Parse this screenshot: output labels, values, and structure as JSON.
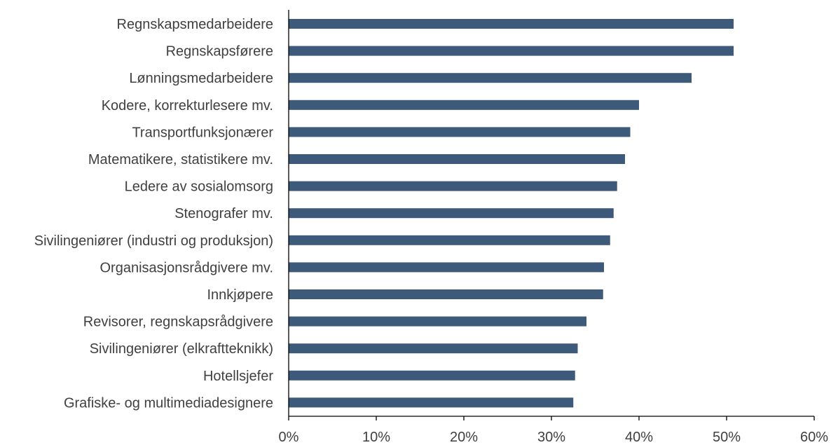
{
  "chart_data": {
    "type": "bar",
    "orientation": "horizontal",
    "title": "",
    "xlabel": "",
    "ylabel": "",
    "categories": [
      "Regnskapsmedarbeidere",
      "Regnskapsførere",
      "Lønningsmedarbeidere",
      "Kodere, korrekturlesere mv.",
      "Transportfunksjonærer",
      "Matematikere, statistikere mv.",
      "Ledere av sosialomsorg",
      "Stenografer mv.",
      "Sivilingeniører (industri og produksjon)",
      "Organisasjonsrådgivere mv.",
      "Innkjøpere",
      "Revisorer, regnskapsrådgivere",
      "Sivilingeniører (elkraftteknikk)",
      "Hotellsjefer",
      "Grafiske- og multimediadesignere"
    ],
    "values": [
      0.508,
      0.508,
      0.46,
      0.4,
      0.39,
      0.384,
      0.375,
      0.371,
      0.367,
      0.36,
      0.359,
      0.34,
      0.33,
      0.327,
      0.325
    ],
    "xlim": [
      0,
      0.6
    ],
    "x_ticks": [
      0,
      0.1,
      0.2,
      0.3,
      0.4,
      0.5,
      0.6
    ],
    "x_tick_labels": [
      "0%",
      "10%",
      "20%",
      "30%",
      "40%",
      "50%",
      "60%"
    ],
    "bar_color": "#3d5a7a",
    "axis_color": "#000000",
    "text_color": "#404040",
    "grid": false,
    "legend": "none"
  }
}
